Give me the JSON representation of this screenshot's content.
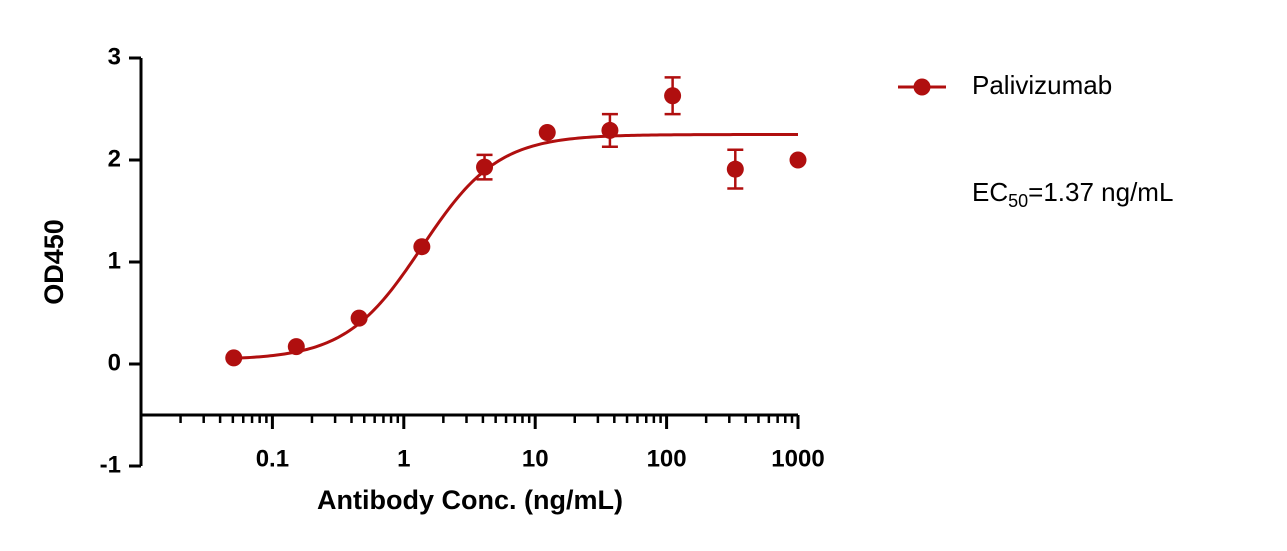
{
  "chart_data": {
    "type": "dose-response",
    "x_label": "Antibody Conc. (ng/mL)",
    "y_label": "OD450",
    "x_log": true,
    "xlim": [
      0.01,
      1000
    ],
    "xticks": [
      0.1,
      1,
      10,
      100,
      1000
    ],
    "ylim": [
      -1,
      3
    ],
    "yticks": [
      -1,
      0,
      1,
      2,
      3
    ],
    "x_axis_crossing": -0.5,
    "legend": "top-right",
    "series": [
      {
        "name": "Palivizumab",
        "color": "#b00f0f",
        "x": [
          0.0508,
          0.152,
          0.457,
          1.372,
          4.115,
          12.35,
          37.04,
          111.1,
          333.3,
          1000
        ],
        "values": [
          0.06,
          0.17,
          0.45,
          1.15,
          1.93,
          2.27,
          2.29,
          2.63,
          1.91,
          2.0
        ],
        "errors": [
          null,
          null,
          null,
          null,
          0.12,
          null,
          0.16,
          0.18,
          0.19,
          null
        ],
        "fit": {
          "bottom": 0.04,
          "top": 2.25,
          "ec50": 1.37,
          "hill": 1.5
        }
      }
    ],
    "annotation": {
      "prefix": "EC",
      "subscript": "50",
      "suffix": "=1.37 ng/mL"
    }
  }
}
